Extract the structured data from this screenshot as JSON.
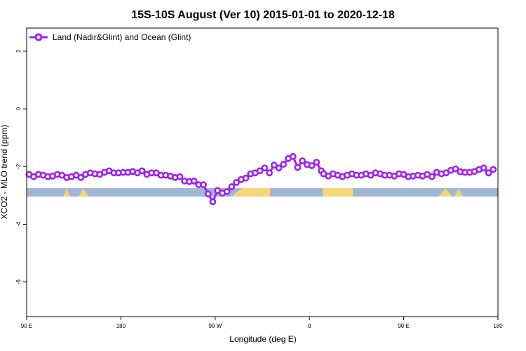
{
  "chart_data": {
    "type": "line",
    "title": "15S-10S August (Ver 10)   2015-01-01 to 2020-12-18",
    "xlabel": "Longitude (deg E)",
    "ylabel": "XCO2 - MLO trend (ppm)",
    "xlim": [
      90,
      450
    ],
    "ylim": [
      -7.2,
      2.8
    ],
    "x_ticks": [
      {
        "value": 90,
        "label": "90 E"
      },
      {
        "value": 162,
        "label": "180"
      },
      {
        "value": 234,
        "label": "90 W"
      },
      {
        "value": 306,
        "label": "0"
      },
      {
        "value": 378,
        "label": "90 E"
      },
      {
        "value": 450,
        "label": "180"
      }
    ],
    "y_ticks": [
      {
        "value": 2,
        "label": "2"
      },
      {
        "value": 0,
        "label": "0"
      },
      {
        "value": -2,
        "label": "-2"
      },
      {
        "value": -4,
        "label": "-4"
      },
      {
        "value": -6,
        "label": "-6"
      }
    ],
    "legend": {
      "position": "top-left",
      "label": "Land (Nadir&Glint) and Ocean (Glint)"
    },
    "series": [
      {
        "name": "Land (Nadir&Glint) and Ocean (Glint)",
        "color": "#a020f0",
        "x": [
          91.8,
          95.4,
          99.0,
          102.6,
          106.2,
          109.8,
          113.4,
          117.0,
          120.6,
          124.2,
          127.8,
          131.4,
          135.0,
          138.6,
          142.2,
          145.8,
          149.4,
          153.0,
          156.6,
          160.2,
          163.8,
          167.4,
          171.0,
          174.6,
          178.2,
          181.8,
          185.4,
          189.0,
          192.6,
          196.2,
          199.8,
          203.4,
          207.0,
          210.6,
          214.2,
          217.8,
          221.4,
          225.0,
          228.6,
          232.2,
          235.8,
          239.4,
          243.0,
          246.6,
          250.2,
          253.8,
          257.4,
          261.0,
          264.6,
          268.2,
          271.8,
          275.4,
          279.0,
          282.6,
          286.2,
          289.8,
          293.4,
          297.0,
          300.6,
          304.2,
          307.8,
          311.4,
          315.0,
          316.8,
          320.4,
          324.0,
          327.6,
          331.2,
          334.8,
          338.4,
          342.0,
          345.6,
          349.2,
          352.8,
          356.4,
          360.0,
          363.6,
          367.2,
          370.8,
          374.4,
          378.0,
          381.6,
          385.2,
          388.8,
          392.4,
          396.0,
          399.6,
          403.2,
          406.8,
          410.4,
          414.0,
          417.6,
          421.2,
          424.8,
          428.4,
          432.0,
          435.6,
          439.2,
          442.8,
          446.4
        ],
        "y": [
          -2.27,
          -2.35,
          -2.27,
          -2.3,
          -2.35,
          -2.33,
          -2.27,
          -2.3,
          -2.38,
          -2.35,
          -2.3,
          -2.38,
          -2.27,
          -2.22,
          -2.25,
          -2.27,
          -2.2,
          -2.15,
          -2.22,
          -2.22,
          -2.2,
          -2.2,
          -2.17,
          -2.22,
          -2.15,
          -2.27,
          -2.22,
          -2.22,
          -2.3,
          -2.3,
          -2.33,
          -2.38,
          -2.35,
          -2.5,
          -2.52,
          -2.5,
          -2.63,
          -2.63,
          -2.95,
          -3.22,
          -2.83,
          -2.92,
          -2.87,
          -2.7,
          -2.55,
          -2.45,
          -2.4,
          -2.25,
          -2.22,
          -2.15,
          -2.05,
          -2.22,
          -1.95,
          -2.05,
          -1.92,
          -1.72,
          -1.65,
          -2.03,
          -1.8,
          -1.93,
          -1.97,
          -1.85,
          -2.15,
          -2.25,
          -2.33,
          -2.25,
          -2.3,
          -2.35,
          -2.3,
          -2.25,
          -2.3,
          -2.3,
          -2.25,
          -2.3,
          -2.22,
          -2.25,
          -2.3,
          -2.3,
          -2.33,
          -2.25,
          -2.27,
          -2.35,
          -2.33,
          -2.3,
          -2.33,
          -2.27,
          -2.35,
          -2.2,
          -2.25,
          -2.22,
          -2.13,
          -2.08,
          -2.18,
          -2.2,
          -2.2,
          -2.17,
          -2.1,
          -2.05,
          -2.22,
          -2.1
        ]
      }
    ]
  }
}
